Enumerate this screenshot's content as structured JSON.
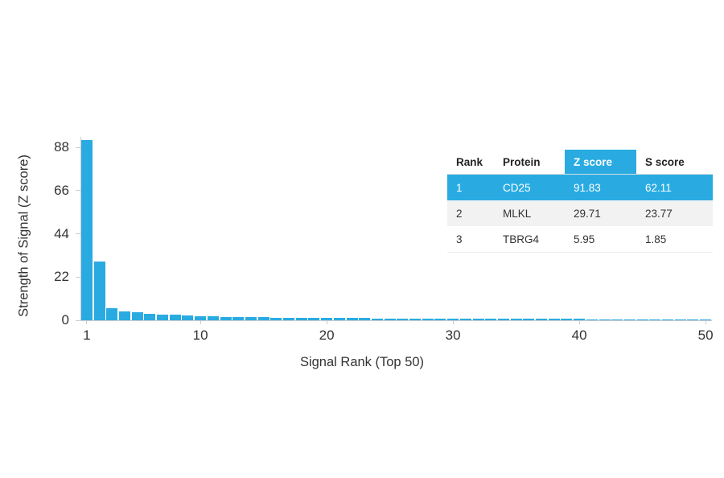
{
  "chart_data": {
    "type": "bar",
    "title": "",
    "xlabel": "Signal Rank (Top 50)",
    "ylabel": "Strength of Signal (Z score)",
    "ylim": [
      0,
      93
    ],
    "yticks": [
      0,
      22,
      44,
      66,
      88
    ],
    "xticks": [
      1,
      10,
      20,
      30,
      40,
      50
    ],
    "grid": false,
    "legend": "none",
    "x_range": [
      1,
      50
    ],
    "values": [
      91.83,
      29.71,
      5.95,
      4.62,
      3.94,
      3.41,
      3.02,
      2.68,
      2.41,
      2.18,
      1.98,
      1.83,
      1.7,
      1.59,
      1.5,
      1.42,
      1.35,
      1.29,
      1.24,
      1.19,
      1.14,
      1.1,
      1.06,
      1.02,
      0.99,
      0.96,
      0.93,
      0.9,
      0.87,
      0.84,
      0.82,
      0.8,
      0.78,
      0.76,
      0.74,
      0.72,
      0.7,
      0.68,
      0.66,
      0.64,
      0.62,
      0.6,
      0.59,
      0.58,
      0.57,
      0.56,
      0.55,
      0.54,
      0.53,
      0.52
    ]
  },
  "table": {
    "headers": [
      "Rank",
      "Protein",
      "Z score",
      "S score"
    ],
    "rows": [
      {
        "rank": "1",
        "protein": "CD25",
        "z_score": "91.83",
        "s_score": "62.11"
      },
      {
        "rank": "2",
        "protein": "MLKL",
        "z_score": "29.71",
        "s_score": "23.77"
      },
      {
        "rank": "3",
        "protein": "TBRG4",
        "z_score": "5.95",
        "s_score": "1.85"
      }
    ],
    "highlighted_row_index": 0
  },
  "colors": {
    "bar": "#29ABE2",
    "table_highlight": "#29ABE2",
    "row_alt": "#F2F2F2",
    "axis": "#C9CCD1",
    "text": "#333333"
  }
}
